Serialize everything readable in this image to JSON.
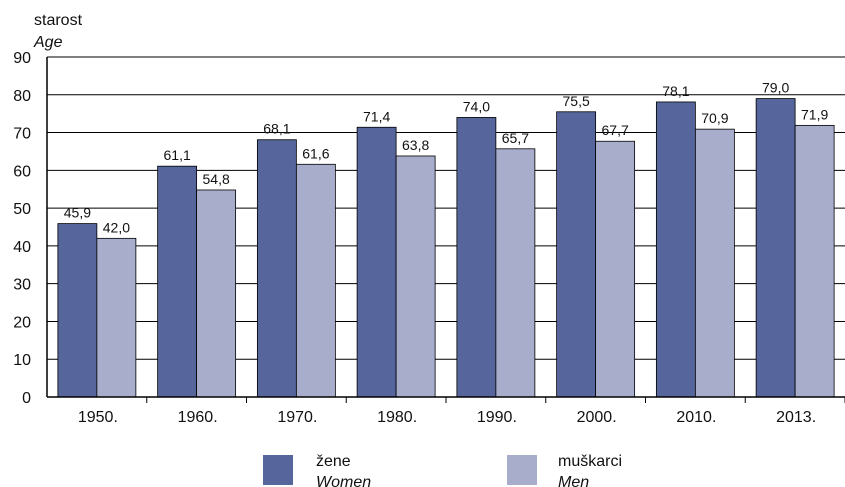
{
  "chart_data": {
    "type": "bar",
    "ylabel_line1": "starost",
    "ylabel_line2": "Age",
    "ylim": [
      0,
      90
    ],
    "yticks": [
      0,
      10,
      20,
      30,
      40,
      50,
      60,
      70,
      80,
      90
    ],
    "categories": [
      "1950.",
      "1960.",
      "1970.",
      "1980.",
      "1990.",
      "2000.",
      "2010.",
      "2013."
    ],
    "series": [
      {
        "name": "žene",
        "name_en": "Women",
        "color": "#56659b",
        "values": [
          45.9,
          61.1,
          68.1,
          71.4,
          74.0,
          75.5,
          78.1,
          79.0
        ],
        "labels": [
          "45,9",
          "61,1",
          "68,1",
          "71,4",
          "74,0",
          "75,5",
          "78,1",
          "79,0"
        ]
      },
      {
        "name": "muškarci",
        "name_en": "Men",
        "color": "#a9adcc",
        "values": [
          42.0,
          54.8,
          61.6,
          63.8,
          65.7,
          67.7,
          70.9,
          71.9
        ],
        "labels": [
          "42,0",
          "54,8",
          "61,6",
          "63,8",
          "65,7",
          "67,7",
          "70,9",
          "71,9"
        ]
      }
    ],
    "grid": true,
    "legend_position": "bottom"
  }
}
